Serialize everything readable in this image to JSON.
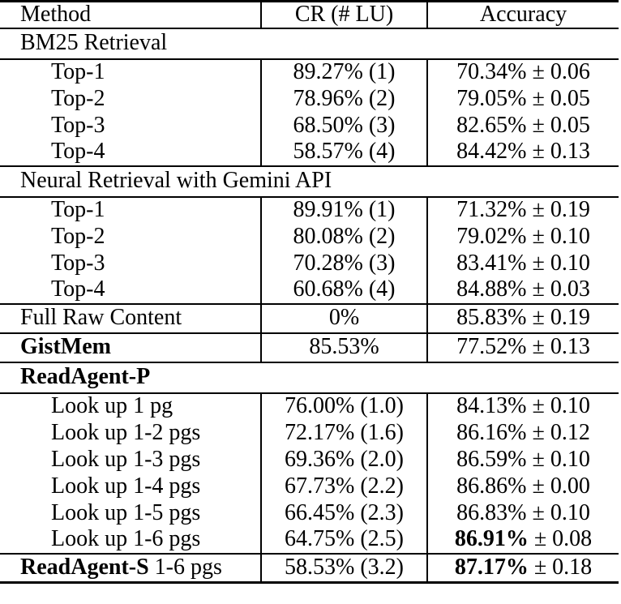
{
  "table": {
    "columns": [
      "Method",
      "CR (# LU)",
      "Accuracy"
    ],
    "rows": [
      {
        "type": "section",
        "label": "BM25 Retrieval",
        "bold": false,
        "rule": true
      },
      {
        "type": "data",
        "indent": true,
        "method": "Top-1",
        "cr": "89.27% (1)",
        "acc": "70.34% ± 0.06",
        "rule": true
      },
      {
        "type": "data",
        "indent": true,
        "method": "Top-2",
        "cr": "78.96% (2)",
        "acc": "79.05% ± 0.05"
      },
      {
        "type": "data",
        "indent": true,
        "method": "Top-3",
        "cr": "68.50% (3)",
        "acc": "82.65% ± 0.05"
      },
      {
        "type": "data",
        "indent": true,
        "method": "Top-4",
        "cr": "58.57% (4)",
        "acc": "84.42% ± 0.13"
      },
      {
        "type": "section",
        "label": "Neural Retrieval with Gemini API",
        "bold": false,
        "rule": true
      },
      {
        "type": "data",
        "indent": true,
        "method": "Top-1",
        "cr": "89.91% (1)",
        "acc": "71.32% ± 0.19",
        "rule": true
      },
      {
        "type": "data",
        "indent": true,
        "method": "Top-2",
        "cr": "80.08% (2)",
        "acc": "79.02% ± 0.10"
      },
      {
        "type": "data",
        "indent": true,
        "method": "Top-3",
        "cr": "70.28% (3)",
        "acc": "83.41% ± 0.10"
      },
      {
        "type": "data",
        "indent": true,
        "method": "Top-4",
        "cr": "60.68% (4)",
        "acc": "84.88% ± 0.03"
      },
      {
        "type": "data",
        "method": "Full Raw Content",
        "cr": "0%",
        "acc": "85.83% ± 0.19",
        "rule": true
      },
      {
        "type": "data",
        "method_bold": "GistMem",
        "cr": "85.53%",
        "acc": "77.52% ± 0.13",
        "rule": true
      },
      {
        "type": "section",
        "label": "ReadAgent-P",
        "bold": true,
        "rule": true
      },
      {
        "type": "data",
        "indent": true,
        "method": "Look up 1 pg",
        "cr": "76.00% (1.0)",
        "acc": "84.13% ± 0.10",
        "rule": true
      },
      {
        "type": "data",
        "indent": true,
        "method": "Look up 1-2 pgs",
        "cr": "72.17% (1.6)",
        "acc": "86.16% ± 0.12"
      },
      {
        "type": "data",
        "indent": true,
        "method": "Look up 1-3 pgs",
        "cr": "69.36% (2.0)",
        "acc": "86.59% ± 0.10"
      },
      {
        "type": "data",
        "indent": true,
        "method": "Look up 1-4 pgs",
        "cr": "67.73% (2.2)",
        "acc": "86.86% ± 0.00"
      },
      {
        "type": "data",
        "indent": true,
        "method": "Look up 1-5 pgs",
        "cr": "66.45% (2.3)",
        "acc": "86.83% ± 0.10"
      },
      {
        "type": "data",
        "indent": true,
        "method": "Look up 1-6 pgs",
        "cr": "64.75% (2.5)",
        "acc_bold": "86.91%",
        "acc": " ± 0.08"
      },
      {
        "type": "data",
        "method_bold": "ReadAgent-S",
        "method": " 1-6 pgs",
        "cr": "58.53% (3.2)",
        "acc_bold": "87.17%",
        "acc": " ± 0.18",
        "rule": true
      }
    ],
    "colors": {
      "text": "#000000",
      "background": "#ffffff",
      "rule": "#000000"
    }
  }
}
